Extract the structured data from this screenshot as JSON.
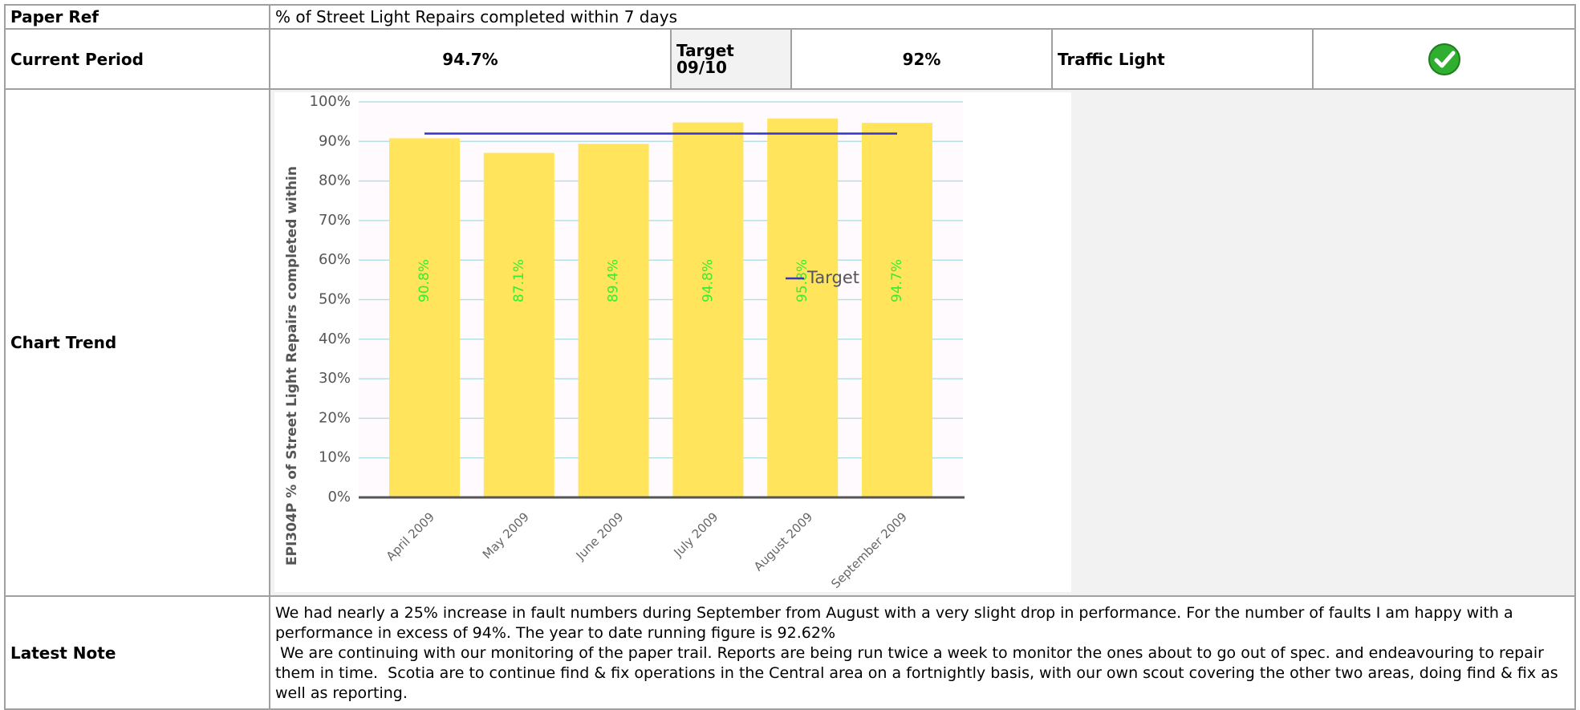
{
  "rows": {
    "paper_ref": {
      "label": "Paper Ref",
      "value": "% of Street Light Repairs completed within 7 days"
    },
    "current_period": {
      "label": "Current Period",
      "value": "94.7%"
    },
    "target": {
      "label": "Target\n09/10",
      "value": "92%"
    },
    "traffic_light": {
      "label": "Traffic Light"
    },
    "chart_trend": {
      "label": "Chart Trend"
    },
    "latest_note": {
      "label": "Latest Note",
      "paragraphs": [
        "We had nearly a 25% increase in fault numbers during September from August with a very slight drop in performance. For the number of faults I am happy with a performance in excess of 94%. The year to date running figure is 92.62%",
        " We are continuing with our monitoring of the paper trail. Reports are being run twice a week to monitor the ones about to go out of spec. and endeavouring to repair them in time.  Scotia are to continue find & fix operations in the Central area on a fortnightly basis, with our own scout covering the other two areas, doing find & fix as well as reporting."
      ]
    }
  },
  "chart_data": {
    "type": "bar",
    "y_label": "EPI304P % of Street Light Repairs completed within",
    "categories": [
      "April 2009",
      "May 2009",
      "June 2009",
      "July 2009",
      "August 2009",
      "September 2009"
    ],
    "series": [
      {
        "type": "bar",
        "color": "#ffe45c",
        "values": [
          90.8,
          87.1,
          89.4,
          94.8,
          95.8,
          94.7
        ],
        "value_labels": [
          "90.8%",
          "87.1%",
          "89.4%",
          "94.8%",
          "95.8%",
          "94.7%"
        ],
        "label_color": "#33ee33"
      },
      {
        "type": "line",
        "name": "Target",
        "color": "#3333cc",
        "values": [
          92,
          92,
          92,
          92,
          92,
          92
        ]
      }
    ],
    "ylim": [
      0,
      100
    ],
    "yticks": [
      {
        "value": 0,
        "label": "0%"
      },
      {
        "value": 10,
        "label": "10%"
      },
      {
        "value": 20,
        "label": "20%"
      },
      {
        "value": 30,
        "label": "30%"
      },
      {
        "value": 40,
        "label": "40%"
      },
      {
        "value": 50,
        "label": "50%"
      },
      {
        "value": 60,
        "label": "60%"
      },
      {
        "value": 70,
        "label": "70%"
      },
      {
        "value": 80,
        "label": "80%"
      },
      {
        "value": 90,
        "label": "90%"
      },
      {
        "value": 100,
        "label": "100%"
      }
    ],
    "grid": true,
    "legend": "right"
  }
}
